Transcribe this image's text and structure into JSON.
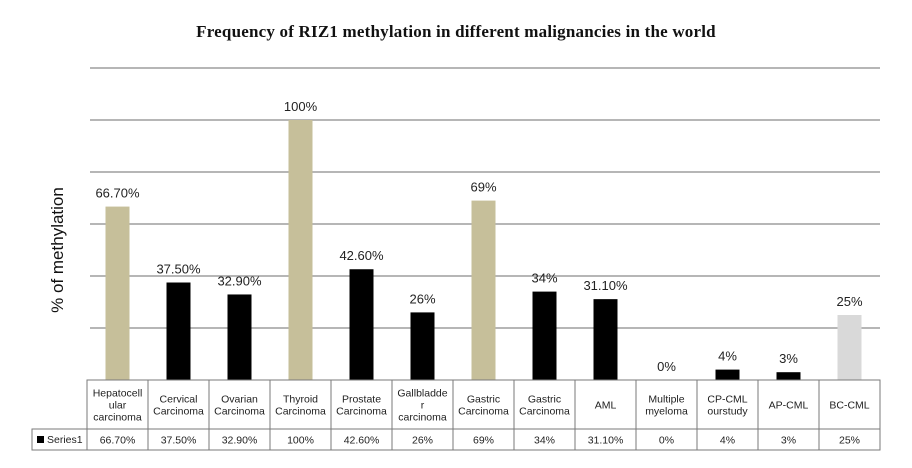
{
  "chart_data": {
    "type": "bar",
    "title": "Frequency  of RIZ1 methylation in  different  malignancies in the world",
    "ylabel": "% of methylation",
    "xlabel": "",
    "ylim": [
      0,
      120
    ],
    "grid": true,
    "legend": "data-table",
    "categories": [
      [
        "Hepatocell",
        "ular",
        "carcinoma"
      ],
      [
        "Cervical",
        "Carcinoma"
      ],
      [
        "Ovarian",
        "Carcinoma"
      ],
      [
        "Thyroid",
        "Carcinoma"
      ],
      [
        "Prostate",
        "Carcinoma"
      ],
      [
        "Gallbladde",
        "r",
        "carcinoma"
      ],
      [
        "Gastric",
        "Carcinoma"
      ],
      [
        "Gastric",
        "Carcinoma"
      ],
      [
        "AML"
      ],
      [
        "Multiple",
        "myeloma"
      ],
      [
        "CP-CML",
        "ourstudy"
      ],
      [
        "AP-CML"
      ],
      [
        "BC-CML"
      ]
    ],
    "series": [
      {
        "name": "Series1",
        "color": "#000000",
        "values": [
          66.7,
          37.5,
          32.9,
          100,
          42.6,
          26,
          69,
          34,
          31.1,
          0,
          4,
          3,
          25
        ],
        "labels": [
          "66.70%",
          "37.50%",
          "32.90%",
          "100%",
          "42.60%",
          "26%",
          "69%",
          "34%",
          "31.10%",
          "0%",
          "4%",
          "3%",
          "25%"
        ],
        "bar_colors": [
          "#c6bf9a",
          "#000000",
          "#000000",
          "#c6bf9a",
          "#000000",
          "#000000",
          "#c6bf9a",
          "#000000",
          "#000000",
          "#000000",
          "#000000",
          "#000000",
          "#d9d9d9"
        ]
      }
    ]
  }
}
